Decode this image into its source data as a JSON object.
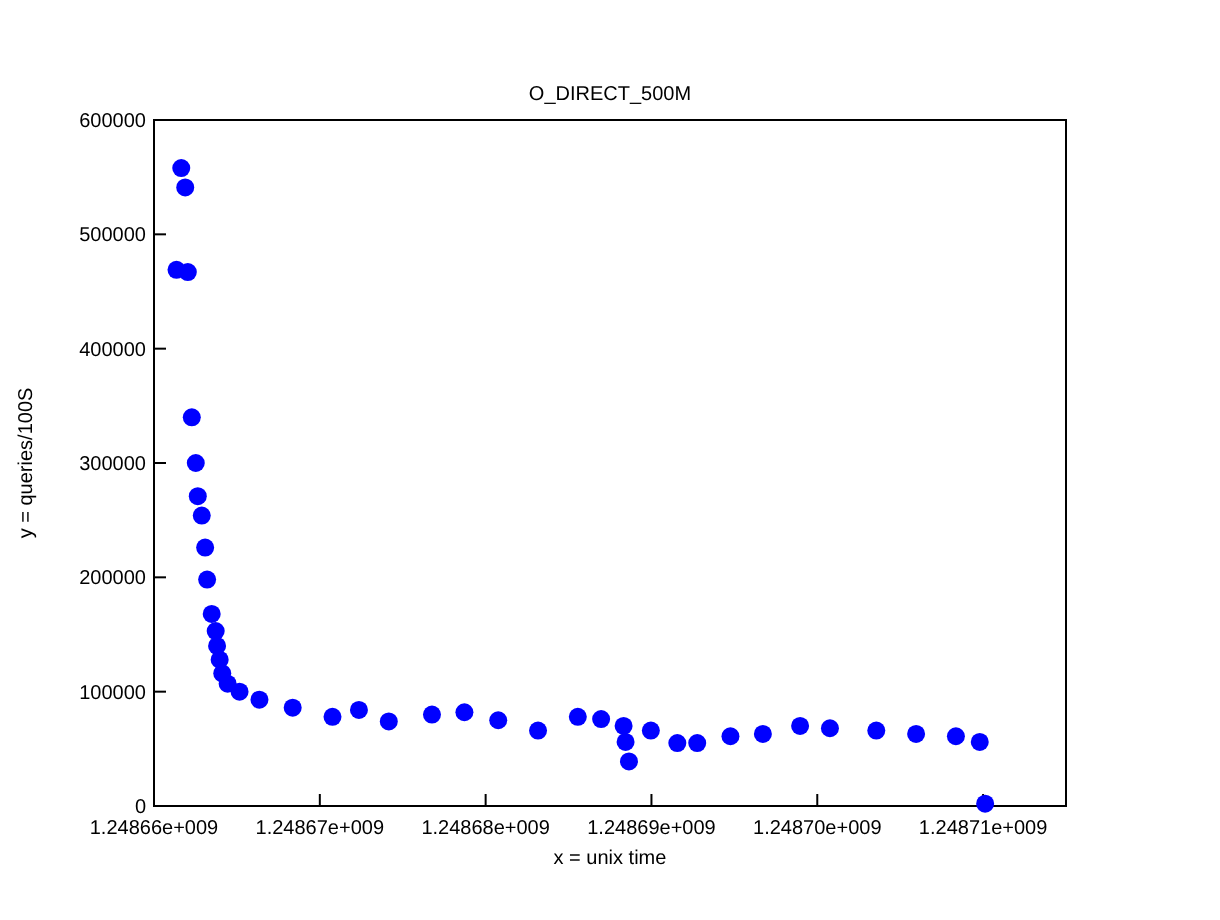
{
  "chart_data": {
    "type": "scatter",
    "title": "O_DIRECT_500M",
    "xlabel": "x = unix time",
    "ylabel": "y = queries/100S",
    "xlim": [
      1248660000,
      1248715000
    ],
    "xticks": [
      {
        "value": 1248660000,
        "label": "1.24866e+009"
      },
      {
        "value": 1248670000,
        "label": "1.24867e+009"
      },
      {
        "value": 1248680000,
        "label": "1.24868e+009"
      },
      {
        "value": 1248690000,
        "label": "1.24869e+009"
      },
      {
        "value": 1248700000,
        "label": "1.24870e+009"
      },
      {
        "value": 1248710000,
        "label": "1.24871e+009"
      }
    ],
    "ylim": [
      0,
      600000
    ],
    "yticks": [
      0,
      100000,
      200000,
      300000,
      400000,
      500000,
      600000
    ],
    "grid": false,
    "marker": "circle",
    "series": [
      {
        "color": "#0000ff",
        "x": [
          1248661356,
          1248661644,
          1248661884,
          1248662040,
          1248662280,
          1248662520,
          1248662640,
          1248662880,
          1248663084,
          1248663204,
          1248663480,
          1248663720,
          1248663804,
          1248663960,
          1248664116,
          1248664440,
          1248665160,
          1248666360,
          1248668364,
          1248670764,
          1248672360,
          1248674160,
          1248676764,
          1248678720,
          1248680760,
          1248683160,
          1248685560,
          1248686964,
          1248688320,
          1248688440,
          1248688644,
          1248689964,
          1248691560,
          1248692760,
          1248694764,
          1248696720,
          1248698964,
          1248700764,
          1248703560,
          1248705960,
          1248708360,
          1248709800,
          1248710124
        ],
        "values": [
          469000,
          558000,
          541000,
          467000,
          340000,
          300000,
          271000,
          254000,
          226000,
          198000,
          168000,
          153000,
          140000,
          128000,
          116000,
          107000,
          100000,
          93000,
          86000,
          78000,
          84000,
          74000,
          80000,
          82000,
          75000,
          66000,
          78000,
          76000,
          70000,
          56000,
          39000,
          66000,
          55000,
          55000,
          61000,
          63000,
          70000,
          68000,
          66000,
          63000,
          61000,
          56000,
          2000
        ]
      }
    ]
  }
}
